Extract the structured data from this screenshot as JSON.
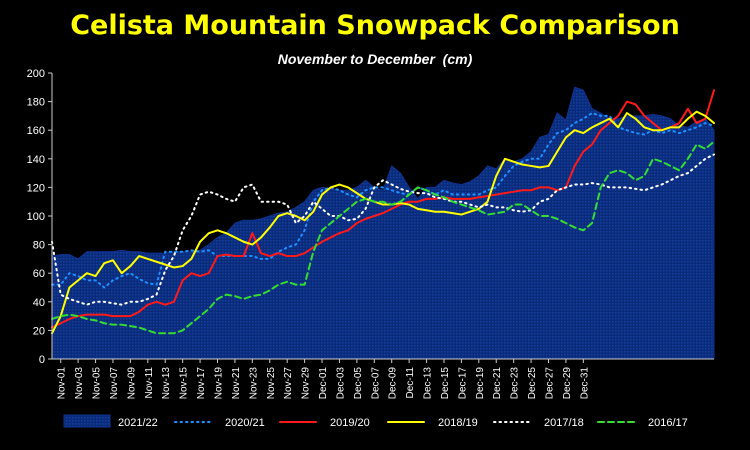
{
  "chart_data": {
    "type": "area",
    "title": "Celista Mountain Snowpack Comparison",
    "subtitle": "November to December  (cm)",
    "ylim": [
      0,
      200
    ],
    "yticks": [
      0,
      20,
      40,
      60,
      80,
      100,
      120,
      140,
      160,
      180,
      200
    ],
    "xtick_labels": [
      "Nov-01",
      "Nov-03",
      "Nov-05",
      "Nov-07",
      "Nov-09",
      "Nov-11",
      "Nov-13",
      "Nov-15",
      "Nov-17",
      "Nov-19",
      "Nov-21",
      "Nov-23",
      "Nov-25",
      "Nov-27",
      "Nov-29",
      "Dec-01",
      "Dec-03",
      "Dec-05",
      "Dec-07",
      "Dec-09",
      "Dec-11",
      "Dec-13",
      "Dec-15",
      "Dec-17",
      "Dec-19",
      "Dec-21",
      "Dec-23",
      "Dec-25",
      "Dec-27",
      "Dec-29",
      "Dec-31"
    ],
    "legend_position": "bottom",
    "grid": false,
    "series": [
      {
        "name": "2021/22",
        "style": "area",
        "color": "#0a2a7a",
        "values": [
          72,
          73,
          73,
          70,
          75,
          75,
          75,
          75,
          76,
          75,
          75,
          74,
          74,
          74,
          75,
          75,
          75,
          76,
          80,
          85,
          88,
          95,
          97,
          97,
          98,
          100,
          102,
          103,
          106,
          110,
          118,
          120,
          119,
          118,
          118,
          120,
          125,
          120,
          118,
          135,
          130,
          120,
          112,
          120,
          120,
          125,
          123,
          122,
          124,
          128,
          135,
          133,
          140,
          138,
          140,
          145,
          155,
          157,
          172,
          167,
          190,
          188,
          175,
          172,
          168,
          168,
          170,
          170,
          170,
          171,
          170,
          168,
          163,
          162,
          166,
          168,
          160
        ]
      },
      {
        "name": "2020/21",
        "style": "dotted",
        "color": "#1e90ff",
        "values": [
          52,
          52,
          60,
          58,
          55,
          55,
          50,
          55,
          58,
          60,
          56,
          53,
          52,
          75,
          75,
          75,
          76,
          75,
          76,
          72,
          72,
          72,
          72,
          72,
          70,
          70,
          75,
          78,
          80,
          90,
          110,
          118,
          120,
          118,
          115,
          113,
          118,
          120,
          120,
          118,
          116,
          115,
          120,
          118,
          115,
          118,
          115,
          115,
          115,
          115,
          118,
          120,
          128,
          135,
          138,
          140,
          140,
          150,
          158,
          160,
          165,
          168,
          172,
          170,
          170,
          162,
          160,
          158,
          157,
          160,
          158,
          160,
          158,
          160,
          162,
          165,
          163
        ]
      },
      {
        "name": "2019/20",
        "style": "solid",
        "color": "#ff1a1a",
        "values": [
          22,
          25,
          28,
          30,
          31,
          31,
          31,
          30,
          30,
          30,
          33,
          38,
          40,
          38,
          40,
          55,
          60,
          58,
          60,
          72,
          73,
          72,
          72,
          88,
          74,
          72,
          74,
          72,
          72,
          74,
          78,
          82,
          85,
          88,
          90,
          95,
          98,
          100,
          102,
          105,
          108,
          110,
          110,
          112,
          112,
          113,
          112,
          112,
          112,
          113,
          114,
          115,
          116,
          117,
          118,
          118,
          120,
          120,
          118,
          120,
          135,
          145,
          150,
          160,
          165,
          170,
          180,
          178,
          170,
          165,
          160,
          162,
          165,
          175,
          165,
          168,
          188
        ]
      },
      {
        "name": "2018/19",
        "style": "solid",
        "color": "#ffff00",
        "values": [
          18,
          30,
          50,
          55,
          60,
          58,
          67,
          69,
          60,
          65,
          72,
          70,
          68,
          66,
          64,
          65,
          70,
          82,
          88,
          90,
          88,
          85,
          82,
          80,
          85,
          92,
          100,
          102,
          100,
          97,
          103,
          115,
          120,
          122,
          120,
          116,
          112,
          110,
          108,
          108,
          109,
          108,
          105,
          104,
          103,
          103,
          102,
          101,
          103,
          105,
          110,
          128,
          140,
          138,
          136,
          135,
          134,
          135,
          145,
          155,
          160,
          158,
          162,
          165,
          168,
          162,
          172,
          168,
          162,
          160,
          160,
          162,
          162,
          168,
          173,
          170,
          165
        ]
      },
      {
        "name": "2017/18",
        "style": "dotted",
        "color": "#ffffff",
        "values": [
          82,
          45,
          42,
          40,
          38,
          40,
          40,
          39,
          38,
          40,
          40,
          42,
          45,
          62,
          72,
          90,
          100,
          115,
          117,
          115,
          112,
          110,
          120,
          122,
          110,
          110,
          110,
          108,
          95,
          100,
          110,
          105,
          100,
          100,
          97,
          98,
          105,
          120,
          125,
          122,
          119,
          117,
          116,
          116,
          113,
          112,
          110,
          110,
          108,
          106,
          108,
          106,
          106,
          104,
          103,
          104,
          110,
          112,
          118,
          120,
          122,
          122,
          123,
          122,
          120,
          120,
          120,
          119,
          118,
          120,
          122,
          125,
          128,
          130,
          135,
          140,
          143
        ]
      },
      {
        "name": "2016/17",
        "style": "dashed",
        "color": "#33dd33",
        "values": [
          28,
          30,
          31,
          30,
          28,
          27,
          25,
          24,
          24,
          23,
          22,
          20,
          18,
          18,
          18,
          20,
          25,
          30,
          35,
          42,
          45,
          44,
          42,
          44,
          45,
          48,
          52,
          54,
          52,
          52,
          75,
          90,
          95,
          100,
          105,
          110,
          112,
          110,
          110,
          108,
          110,
          115,
          120,
          118,
          115,
          113,
          110,
          108,
          106,
          104,
          101,
          102,
          103,
          108,
          108,
          104,
          100,
          100,
          98,
          95,
          92,
          90,
          95,
          120,
          130,
          132,
          130,
          125,
          128,
          140,
          138,
          135,
          132,
          140,
          150,
          147,
          152
        ]
      }
    ]
  }
}
